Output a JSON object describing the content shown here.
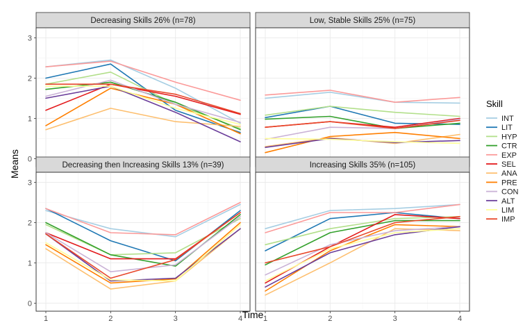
{
  "chart_data": {
    "type": "line",
    "xlabel": "Time",
    "ylabel": "Means",
    "x": [
      1,
      2,
      3,
      4
    ],
    "ylim": [
      0,
      3
    ],
    "yticks": [
      0,
      1,
      2,
      3
    ],
    "legend": {
      "title": "Skill",
      "position": "right"
    },
    "series_styles": [
      {
        "name": "INT",
        "color": "#a6cee3"
      },
      {
        "name": "LIT",
        "color": "#1f78b4"
      },
      {
        "name": "HYP",
        "color": "#b2df8a"
      },
      {
        "name": "CTR",
        "color": "#33a02c"
      },
      {
        "name": "EXP",
        "color": "#fb9a99"
      },
      {
        "name": "SEL",
        "color": "#e31a1c"
      },
      {
        "name": "ANA",
        "color": "#fdbf6f"
      },
      {
        "name": "PRE",
        "color": "#ff7f00"
      },
      {
        "name": "CON",
        "color": "#cab2d6"
      },
      {
        "name": "ALT",
        "color": "#6a3d9a"
      },
      {
        "name": "LIM",
        "color": "#ffff99"
      },
      {
        "name": "IMP",
        "color": "#e8472a"
      }
    ],
    "panels": [
      {
        "title": "Decreasing Skills 26% (n=78)",
        "series": [
          {
            "name": "INT",
            "values": [
              2.28,
              2.45,
              1.75,
              0.88
            ]
          },
          {
            "name": "LIT",
            "values": [
              2.0,
              2.35,
              1.2,
              0.65
            ]
          },
          {
            "name": "HYP",
            "values": [
              1.85,
              2.15,
              1.35,
              0.75
            ]
          },
          {
            "name": "CTR",
            "values": [
              1.72,
              1.9,
              1.4,
              0.72
            ]
          },
          {
            "name": "EXP",
            "values": [
              2.28,
              2.42,
              1.9,
              1.45
            ]
          },
          {
            "name": "SEL",
            "values": [
              1.2,
              1.85,
              1.55,
              1.1
            ]
          },
          {
            "name": "ANA",
            "values": [
              0.72,
              1.25,
              0.92,
              0.8
            ]
          },
          {
            "name": "PRE",
            "values": [
              0.82,
              1.75,
              1.35,
              0.62
            ]
          },
          {
            "name": "CON",
            "values": [
              1.55,
              1.95,
              1.35,
              0.9
            ]
          },
          {
            "name": "ALT",
            "values": [
              1.5,
              1.8,
              1.15,
              0.42
            ]
          },
          {
            "name": "LIM",
            "values": [
              1.8,
              1.8,
              1.25,
              0.85
            ]
          },
          {
            "name": "IMP",
            "values": [
              1.85,
              1.85,
              1.6,
              1.12
            ]
          }
        ]
      },
      {
        "title": "Low, Stable Skills 25% (n=75)",
        "series": [
          {
            "name": "INT",
            "values": [
              1.5,
              1.65,
              1.4,
              1.38
            ]
          },
          {
            "name": "LIT",
            "values": [
              1.02,
              1.3,
              0.88,
              0.85
            ]
          },
          {
            "name": "HYP",
            "values": [
              1.08,
              1.3,
              1.15,
              1.05
            ]
          },
          {
            "name": "CTR",
            "values": [
              0.98,
              1.05,
              0.75,
              0.88
            ]
          },
          {
            "name": "EXP",
            "values": [
              1.58,
              1.7,
              1.4,
              1.52
            ]
          },
          {
            "name": "SEL",
            "values": [
              0.78,
              0.92,
              0.78,
              1.0
            ]
          },
          {
            "name": "ANA",
            "values": [
              0.3,
              0.52,
              0.38,
              0.6
            ]
          },
          {
            "name": "PRE",
            "values": [
              0.15,
              0.55,
              0.65,
              0.5
            ]
          },
          {
            "name": "CON",
            "values": [
              0.48,
              0.78,
              0.75,
              0.98
            ]
          },
          {
            "name": "ALT",
            "values": [
              0.28,
              0.5,
              0.4,
              0.45
            ]
          },
          {
            "name": "LIM",
            "values": [
              0.5,
              0.48,
              0.42,
              0.38
            ]
          },
          {
            "name": "IMP",
            "values": [
              0.78,
              0.92,
              0.75,
              0.95
            ]
          }
        ]
      },
      {
        "title": "Decreasing then Increasing Skills 13% (n=39)",
        "series": [
          {
            "name": "INT",
            "values": [
              2.3,
              1.85,
              1.65,
              2.45
            ]
          },
          {
            "name": "LIT",
            "values": [
              2.35,
              1.55,
              1.05,
              2.3
            ]
          },
          {
            "name": "HYP",
            "values": [
              1.95,
              1.2,
              1.25,
              2.1
            ]
          },
          {
            "name": "CTR",
            "values": [
              2.0,
              1.2,
              0.92,
              2.2
            ]
          },
          {
            "name": "EXP",
            "values": [
              2.35,
              1.75,
              1.7,
              2.5
            ]
          },
          {
            "name": "SEL",
            "values": [
              1.75,
              1.1,
              1.1,
              2.25
            ]
          },
          {
            "name": "ANA",
            "values": [
              1.35,
              0.35,
              0.55,
              1.85
            ]
          },
          {
            "name": "PRE",
            "values": [
              1.45,
              0.5,
              0.6,
              2.0
            ]
          },
          {
            "name": "CON",
            "values": [
              1.75,
              0.78,
              0.95,
              2.15
            ]
          },
          {
            "name": "ALT",
            "values": [
              1.72,
              0.55,
              0.62,
              1.85
            ]
          },
          {
            "name": "LIM",
            "values": [
              1.5,
              0.58,
              0.55,
              1.95
            ]
          },
          {
            "name": "IMP",
            "values": [
              1.72,
              0.62,
              1.08,
              2.25
            ]
          }
        ]
      },
      {
        "title": "Increasing Skills 35% (n=105)",
        "series": [
          {
            "name": "INT",
            "values": [
              1.85,
              2.3,
              2.35,
              2.45
            ]
          },
          {
            "name": "LIT",
            "values": [
              1.3,
              2.1,
              2.25,
              2.1
            ]
          },
          {
            "name": "HYP",
            "values": [
              1.45,
              1.85,
              2.1,
              2.15
            ]
          },
          {
            "name": "CTR",
            "values": [
              0.95,
              1.75,
              2.05,
              2.05
            ]
          },
          {
            "name": "EXP",
            "values": [
              1.75,
              2.25,
              2.25,
              2.45
            ]
          },
          {
            "name": "SEL",
            "values": [
              0.5,
              1.4,
              2.2,
              2.1
            ]
          },
          {
            "name": "ANA",
            "values": [
              0.2,
              1.0,
              1.85,
              1.8
            ]
          },
          {
            "name": "PRE",
            "values": [
              0.3,
              1.3,
              1.95,
              1.9
            ]
          },
          {
            "name": "CON",
            "values": [
              0.7,
              1.45,
              1.8,
              1.9
            ]
          },
          {
            "name": "ALT",
            "values": [
              0.4,
              1.25,
              1.7,
              1.9
            ]
          },
          {
            "name": "LIM",
            "values": [
              0.55,
              1.35,
              1.75,
              1.85
            ]
          },
          {
            "name": "IMP",
            "values": [
              1.0,
              1.4,
              2.0,
              2.15
            ]
          }
        ]
      }
    ]
  }
}
